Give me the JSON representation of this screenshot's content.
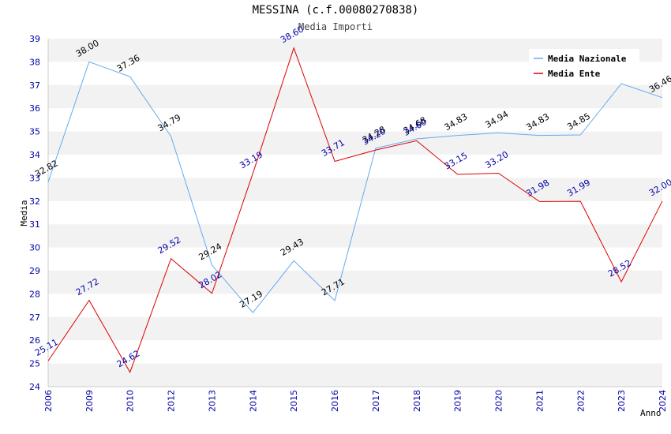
{
  "chart_data": {
    "type": "line",
    "title": "MESSINA (c.f.00080270838)",
    "subtitle": "Media Importi",
    "xlabel": "Anno",
    "ylabel": "Media",
    "ylim": [
      24,
      39
    ],
    "yticks": [
      "24",
      "25",
      "26",
      "27",
      "28",
      "29",
      "30",
      "31",
      "32",
      "33",
      "34",
      "35",
      "36",
      "37",
      "38",
      "39"
    ],
    "categories": [
      "2006",
      "2009",
      "2010",
      "2012",
      "2013",
      "2014",
      "2015",
      "2016",
      "2017",
      "2018",
      "2019",
      "2020",
      "2021",
      "2022",
      "2023",
      "2024"
    ],
    "series": [
      {
        "name": "Media Nazionale",
        "color": "#66aaee",
        "values": [
          32.82,
          38.0,
          37.36,
          34.79,
          29.24,
          27.19,
          29.43,
          27.71,
          34.28,
          34.68,
          34.83,
          34.94,
          34.83,
          34.85,
          37.06,
          36.46
        ],
        "labels": [
          "32.82",
          "38.00",
          "37.36",
          "34.79",
          "29.24",
          "27.19",
          "29.43",
          "27.71",
          "34.28",
          "34.68",
          "34.83",
          "34.94",
          "34.83",
          "34.85",
          "",
          "36.46"
        ]
      },
      {
        "name": "Media Ente",
        "color": "#dd0000",
        "values": [
          25.11,
          27.72,
          24.62,
          29.52,
          28.02,
          33.19,
          38.6,
          33.71,
          34.2,
          34.6,
          33.15,
          33.2,
          31.98,
          31.99,
          28.52,
          32.0
        ],
        "labels": [
          "25.11",
          "27.72",
          "24.62",
          "29.52",
          "28.02",
          "33.19",
          "38.60",
          "33.71",
          "34.20",
          "34.60",
          "33.15",
          "33.20",
          "31.98",
          "31.99",
          "28.52",
          "32.00"
        ]
      }
    ],
    "legend": "top-right",
    "grid": "horizontal bands"
  }
}
